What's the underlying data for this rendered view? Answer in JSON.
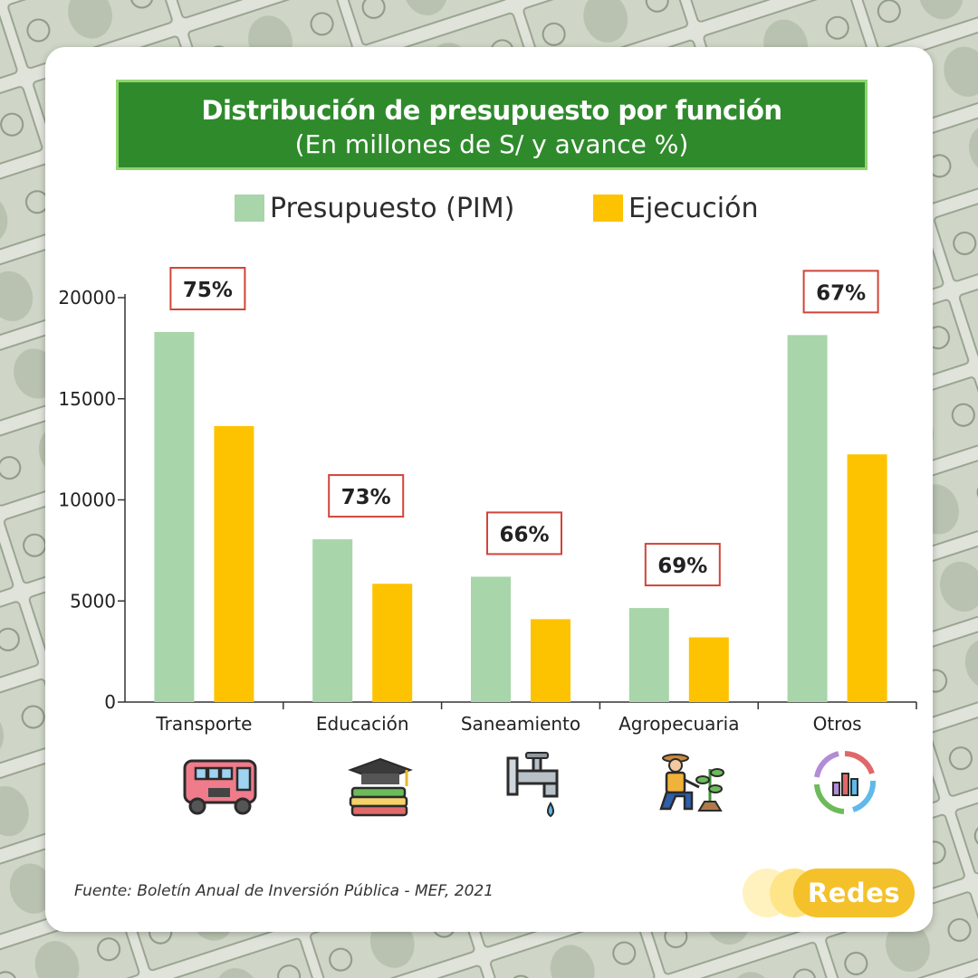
{
  "title": "Distribución de presupuesto por función",
  "subtitle": "(En millones de S/ y avance %)",
  "source": "Fuente: Boletín Anual de Inversión Pública -  MEF, 2021",
  "brand": "Redes",
  "colors": {
    "presupuesto": "#a8d5a9",
    "ejecucion": "#fdc300",
    "title_bg": "#2f8a2c",
    "annotation_border": "#d0453a",
    "axis": "#333333"
  },
  "chart_data": {
    "type": "bar",
    "categories": [
      "Transporte",
      "Educación",
      "Saneamiento",
      "Agropecuaria",
      "Otros"
    ],
    "series": [
      {
        "name": "Presupuesto (PIM)",
        "values": [
          18300,
          8050,
          6200,
          4650,
          18150
        ]
      },
      {
        "name": "Ejecución",
        "values": [
          13650,
          5850,
          4100,
          3200,
          12250
        ]
      }
    ],
    "annotations": [
      "75%",
      "73%",
      "66%",
      "69%",
      "67%"
    ],
    "yticks": [
      0,
      5000,
      10000,
      15000,
      20000
    ],
    "ylim": [
      0,
      20000
    ],
    "legend_position": "top",
    "grid": false
  },
  "icons": [
    "bus-icon",
    "graduation-books-icon",
    "water-tap-icon",
    "farmer-plant-icon",
    "bar-chart-donut-icon"
  ]
}
